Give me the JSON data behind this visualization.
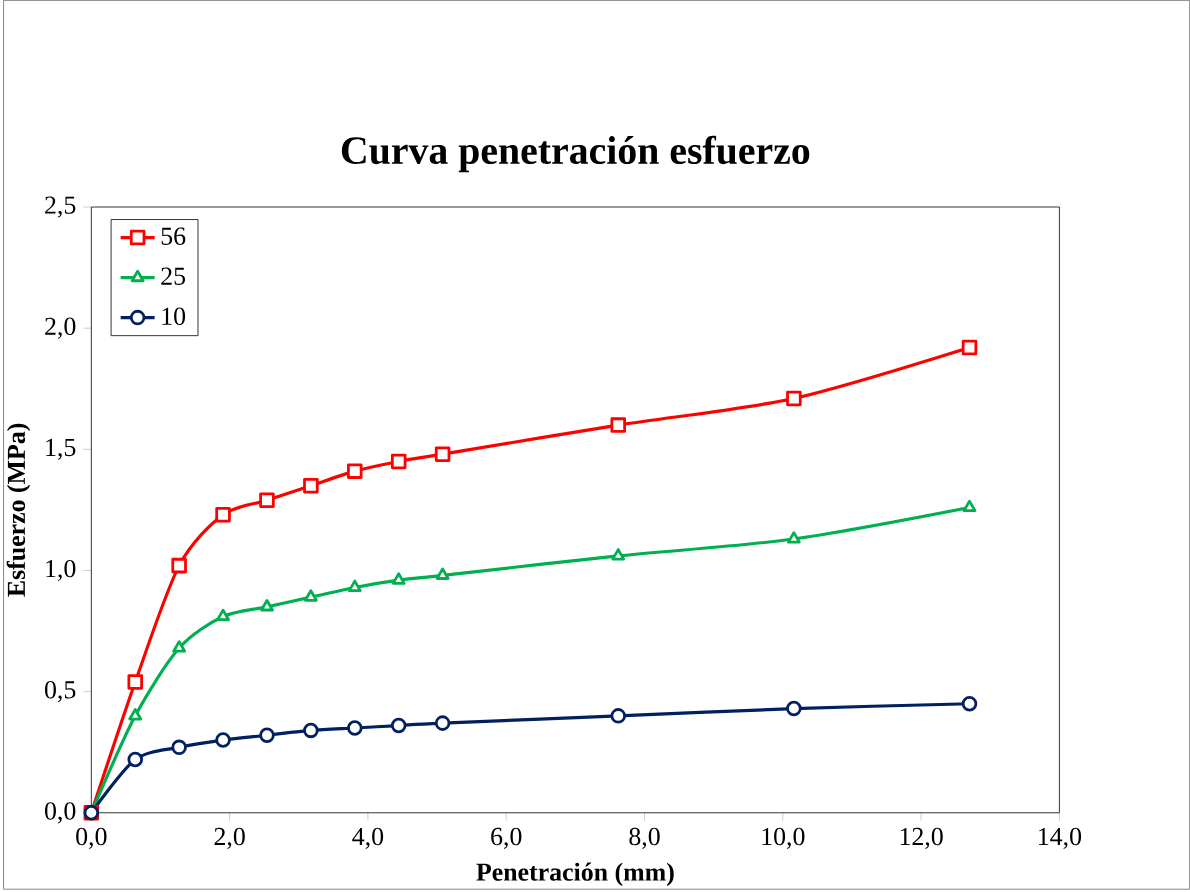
{
  "chart_data": {
    "type": "line",
    "title": "Curva penetración esfuerzo",
    "xlabel": "Penetración (mm)",
    "ylabel": "Esfuerzo (MPa)",
    "x": [
      0,
      0.635,
      1.27,
      1.905,
      2.54,
      3.175,
      3.81,
      4.445,
      5.08,
      7.62,
      10.16,
      12.7
    ],
    "series": [
      {
        "name": "56",
        "color": "#ff0000",
        "marker": "square",
        "values": [
          0,
          0.54,
          1.02,
          1.23,
          1.29,
          1.35,
          1.41,
          1.45,
          1.48,
          1.6,
          1.71,
          1.92
        ]
      },
      {
        "name": "25",
        "color": "#00b050",
        "marker": "triangle",
        "values": [
          0,
          0.4,
          0.68,
          0.81,
          0.85,
          0.89,
          0.93,
          0.96,
          0.98,
          1.06,
          1.13,
          1.26
        ]
      },
      {
        "name": "10",
        "color": "#002060",
        "marker": "circle",
        "values": [
          0,
          0.22,
          0.27,
          0.3,
          0.32,
          0.34,
          0.35,
          0.36,
          0.37,
          0.4,
          0.43,
          0.45
        ]
      }
    ],
    "xlim": [
      0,
      14
    ],
    "ylim": [
      0,
      2.5
    ],
    "xticks": [
      {
        "value": 0,
        "label": "0,0"
      },
      {
        "value": 2,
        "label": "2,0"
      },
      {
        "value": 4,
        "label": "4,0"
      },
      {
        "value": 6,
        "label": "6,0"
      },
      {
        "value": 8,
        "label": "8,0"
      },
      {
        "value": 10,
        "label": "10,0"
      },
      {
        "value": 12,
        "label": "12,0"
      },
      {
        "value": 14,
        "label": "14,0"
      }
    ],
    "yticks": [
      {
        "value": 0,
        "label": "0,0"
      },
      {
        "value": 0.5,
        "label": "0,5"
      },
      {
        "value": 1,
        "label": "1,0"
      },
      {
        "value": 1.5,
        "label": "1,5"
      },
      {
        "value": 2,
        "label": "2,0"
      },
      {
        "value": 2.5,
        "label": "2,5"
      }
    ],
    "legend": "top left",
    "grid": false
  }
}
